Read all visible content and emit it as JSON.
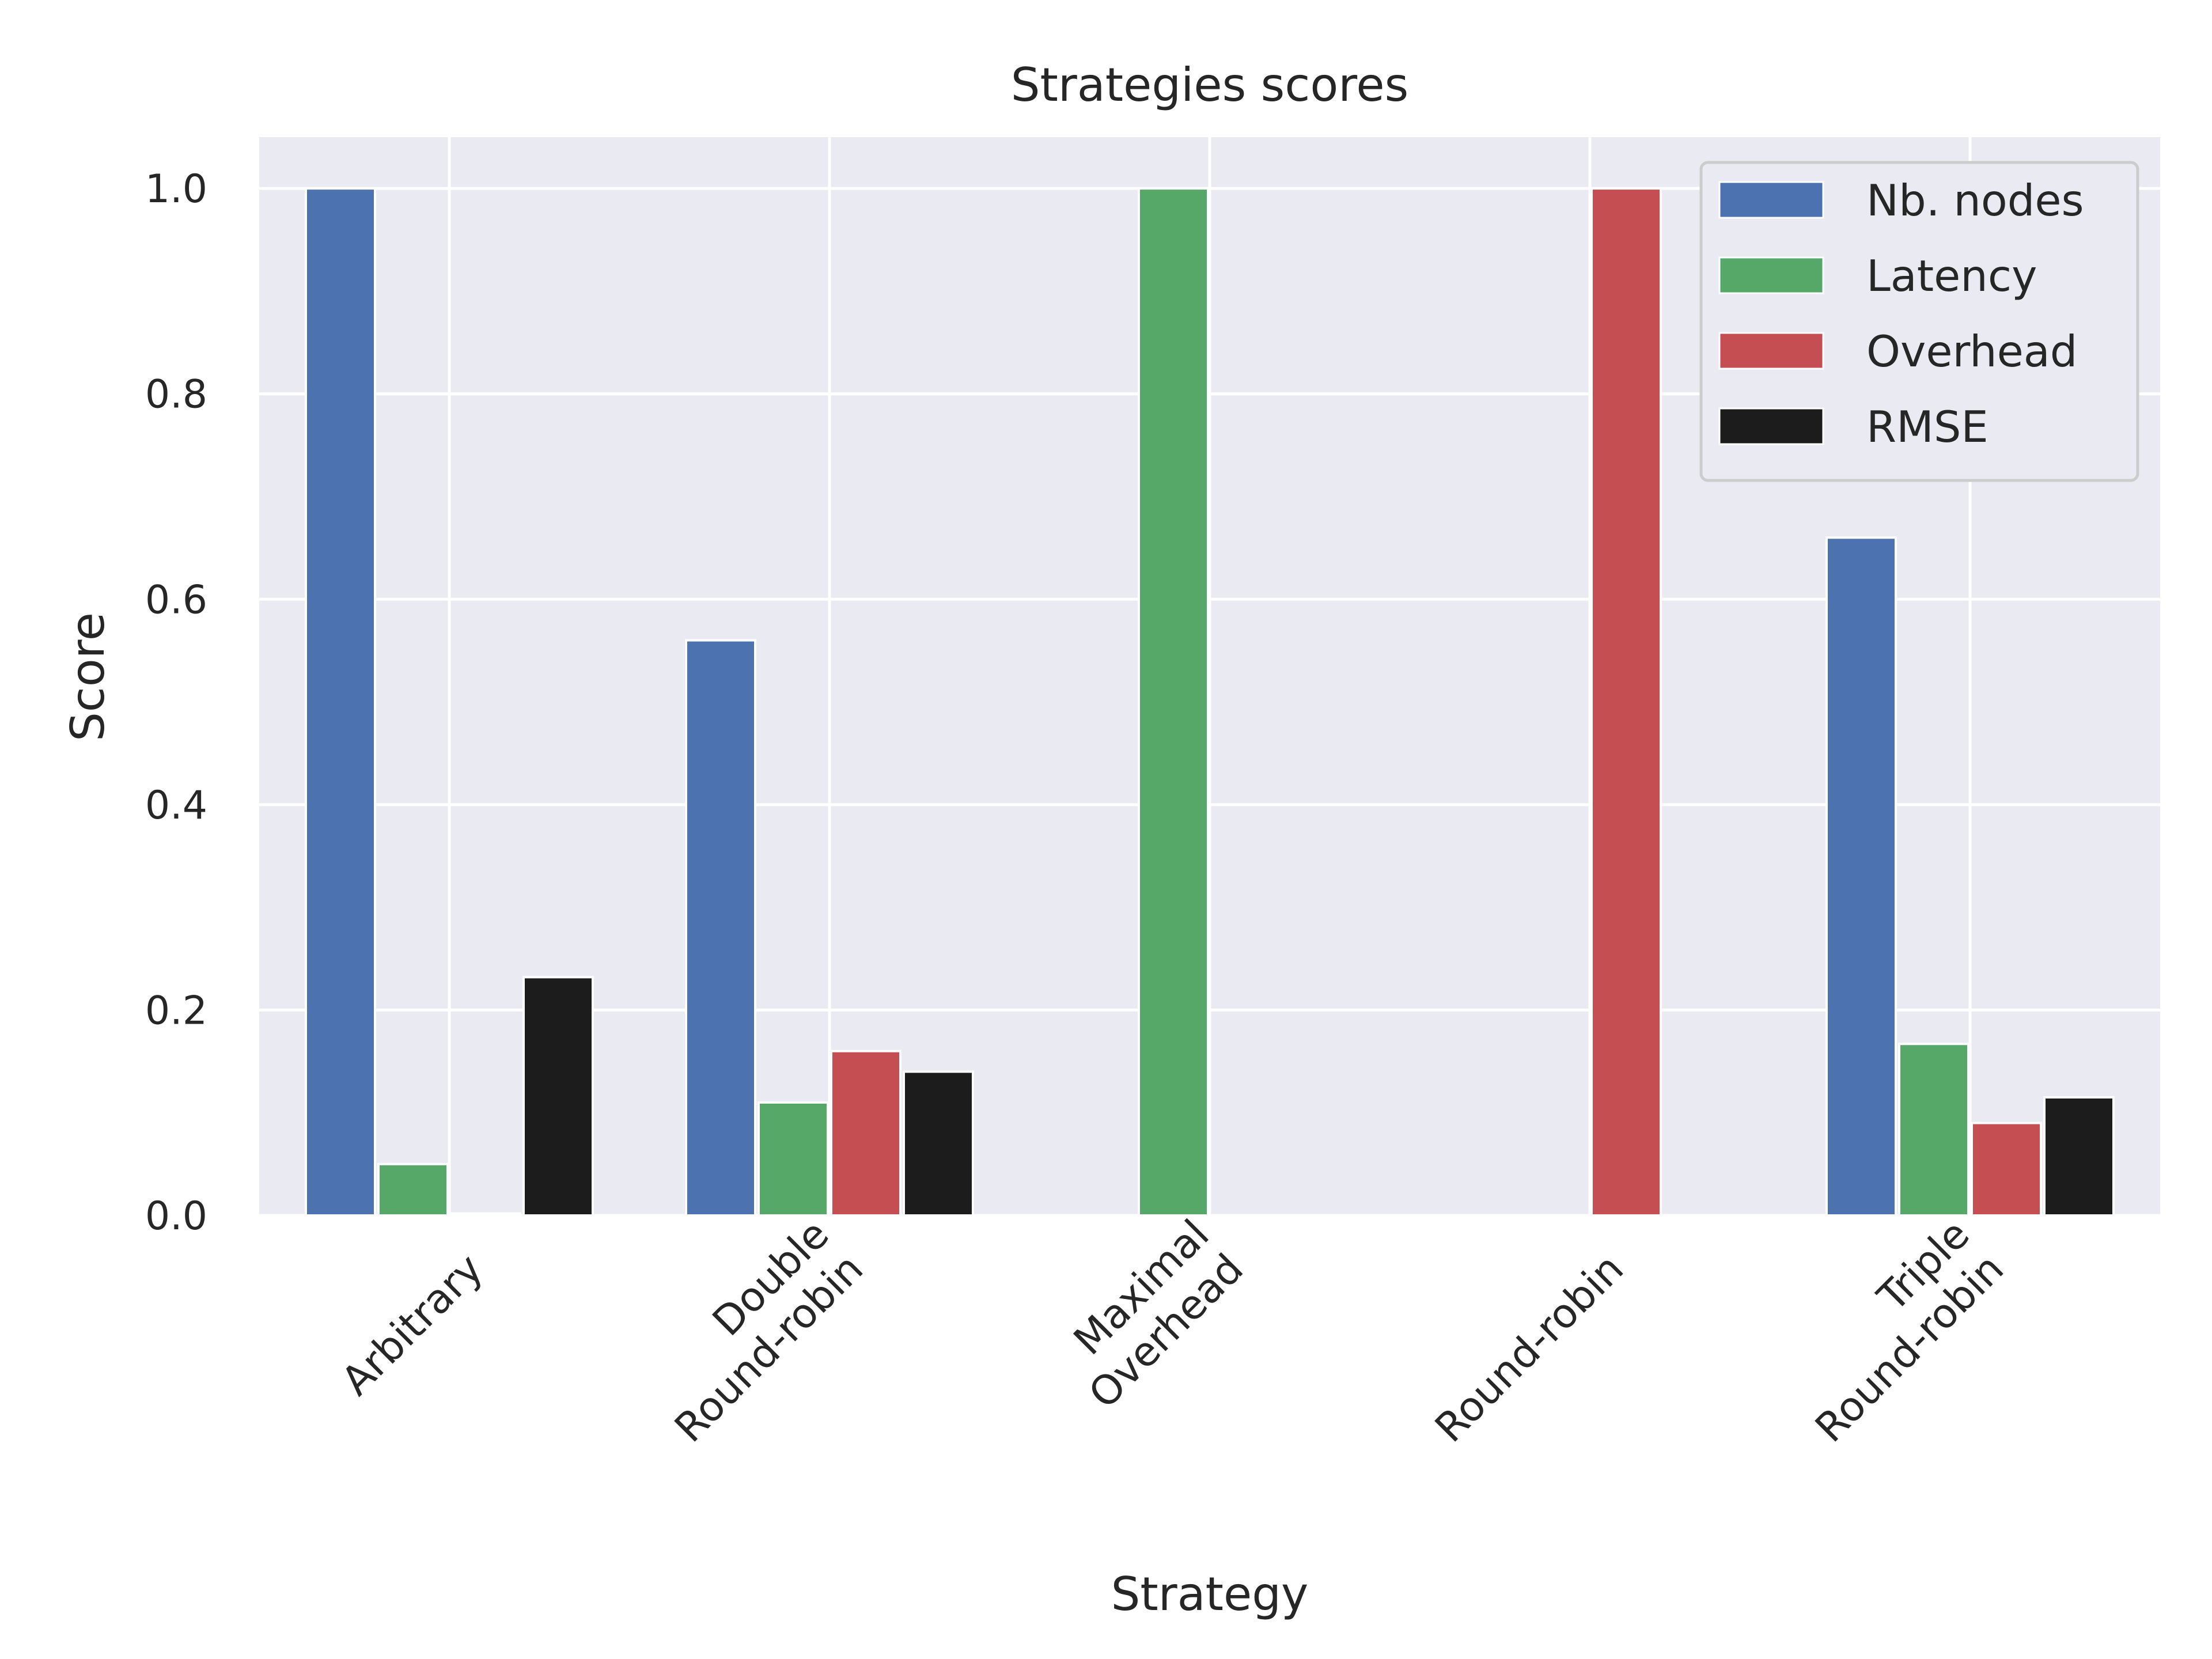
{
  "chart_data": {
    "type": "bar",
    "title": "Strategies scores",
    "xlabel": "Strategy",
    "ylabel": "Score",
    "ylim": [
      0,
      1.05
    ],
    "yticks": [
      0.0,
      0.2,
      0.4,
      0.6,
      0.8,
      1.0
    ],
    "ytick_labels": [
      "0.0",
      "0.2",
      "0.4",
      "0.6",
      "0.8",
      "1.0"
    ],
    "categories": [
      [
        "Arbitrary"
      ],
      [
        "Double",
        "Round-robin"
      ],
      [
        "Maximal",
        "Overhead"
      ],
      [
        "Round-robin"
      ],
      [
        "Triple",
        "Round-robin"
      ]
    ],
    "series": [
      {
        "name": "Nb. nodes",
        "color": "#4c72b0",
        "values": [
          1.0,
          0.56,
          0.0,
          0.0,
          0.66
        ]
      },
      {
        "name": "Latency",
        "color": "#55a868",
        "values": [
          0.05,
          0.11,
          1.0,
          0.0,
          0.167
        ]
      },
      {
        "name": "Overhead",
        "color": "#c44e52",
        "values": [
          0.002,
          0.16,
          0.0,
          1.0,
          0.09
        ]
      },
      {
        "name": "RMSE",
        "color": "#1c1c1c",
        "values": [
          0.232,
          0.14,
          0.0,
          0.0,
          0.115
        ]
      }
    ],
    "grid": true,
    "legend_position": "top-right"
  }
}
